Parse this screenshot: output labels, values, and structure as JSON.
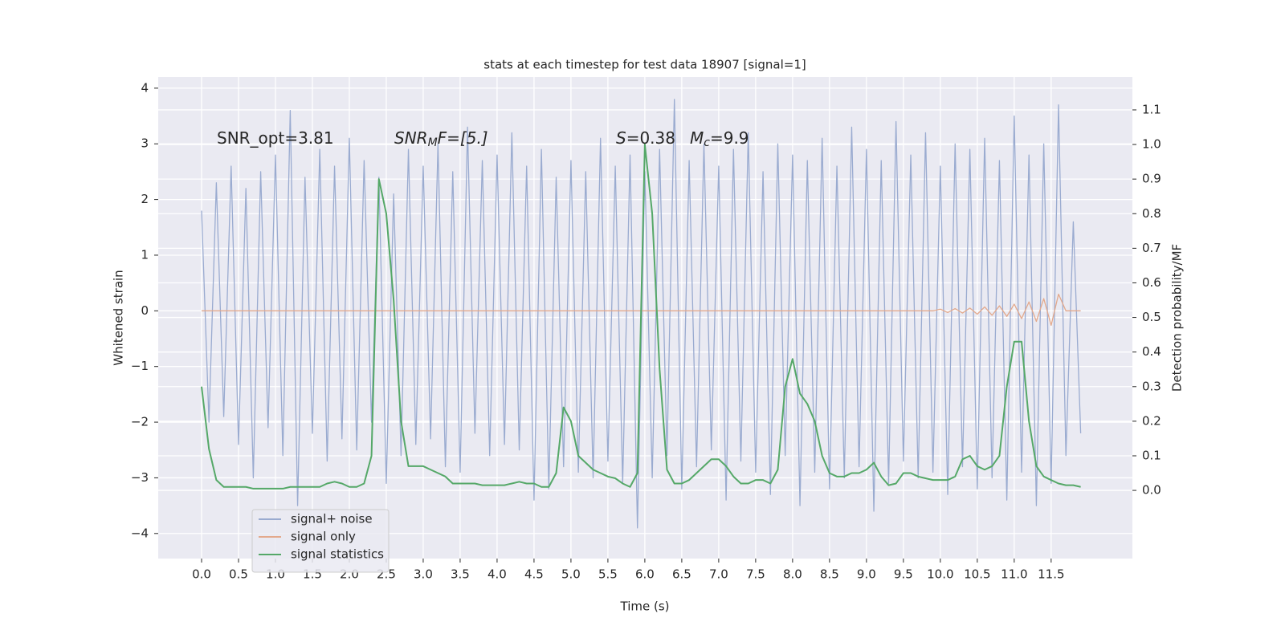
{
  "chart_data": {
    "type": "line",
    "title": "stats at each timestep for test data 18907 [signal=1]",
    "xlabel": "Time (s)",
    "ylabel": "Whitened strain",
    "y2label": "Detection probability/MF",
    "annotations": [
      [
        "SNR_opt=3.81"
      ],
      [
        "SNR",
        "M",
        "F=[5.]"
      ],
      [
        "S",
        "=0.38"
      ],
      [
        "M",
        "c",
        "=9.9"
      ]
    ],
    "x": [
      0,
      0.1,
      0.2,
      0.3,
      0.4,
      0.5,
      0.6,
      0.7,
      0.8,
      0.9,
      1,
      1.1,
      1.2,
      1.3,
      1.4,
      1.5,
      1.6,
      1.7,
      1.8,
      1.9,
      2,
      2.1,
      2.2,
      2.3,
      2.4,
      2.5,
      2.6,
      2.7,
      2.8,
      2.9,
      3,
      3.1,
      3.2,
      3.3,
      3.4,
      3.5,
      3.6,
      3.7,
      3.8,
      3.9,
      4,
      4.1,
      4.2,
      4.3,
      4.4,
      4.5,
      4.6,
      4.7,
      4.8,
      4.9,
      5,
      5.1,
      5.2,
      5.3,
      5.4,
      5.5,
      5.6,
      5.7,
      5.8,
      5.9,
      6,
      6.1,
      6.2,
      6.3,
      6.4,
      6.5,
      6.6,
      6.7,
      6.8,
      6.9,
      7,
      7.1,
      7.2,
      7.3,
      7.4,
      7.5,
      7.6,
      7.7,
      7.8,
      7.9,
      8,
      8.1,
      8.2,
      8.3,
      8.4,
      8.5,
      8.6,
      8.7,
      8.8,
      8.9,
      9,
      9.1,
      9.2,
      9.3,
      9.4,
      9.5,
      9.6,
      9.7,
      9.8,
      9.9,
      10,
      10.1,
      10.2,
      10.3,
      10.4,
      10.5,
      10.6,
      10.7,
      10.8,
      10.9,
      11,
      11.1,
      11.2,
      11.3,
      11.4,
      11.5,
      11.6,
      11.7,
      11.8,
      11.9
    ],
    "series": [
      {
        "name": "signal+ noise",
        "color": "#9aabd0",
        "values": [
          1.8,
          -2.0,
          2.3,
          -1.9,
          2.6,
          -2.4,
          2.2,
          -3.0,
          2.5,
          -2.1,
          2.8,
          -2.6,
          3.6,
          -3.5,
          2.4,
          -2.2,
          2.9,
          -2.7,
          2.6,
          -2.3,
          3.1,
          -2.5,
          2.7,
          -2.0,
          2.4,
          -3.1,
          2.1,
          -2.6,
          2.9,
          -2.4,
          2.6,
          -2.3,
          3.0,
          -2.8,
          2.5,
          -2.9,
          3.3,
          -2.2,
          2.7,
          -2.6,
          2.8,
          -2.4,
          3.2,
          -2.5,
          2.6,
          -3.4,
          2.9,
          -3.2,
          2.4,
          -2.8,
          2.7,
          -2.9,
          2.5,
          -3.0,
          3.1,
          -2.7,
          2.6,
          -3.1,
          2.8,
          -3.9,
          2.5,
          -3.0,
          2.9,
          -2.6,
          3.8,
          -3.2,
          2.7,
          -2.8,
          3.0,
          -2.5,
          2.6,
          -3.4,
          2.9,
          -2.7,
          3.2,
          -2.9,
          2.5,
          -3.3,
          3.0,
          -2.6,
          2.8,
          -3.5,
          2.7,
          -2.9,
          3.1,
          -3.2,
          2.6,
          -3.0,
          3.3,
          -2.8,
          2.9,
          -3.6,
          2.7,
          -3.1,
          3.4,
          -2.7,
          2.8,
          -3.0,
          3.2,
          -2.9,
          2.6,
          -3.3,
          3.0,
          -2.8,
          2.9,
          -3.2,
          3.1,
          -3.0,
          2.7,
          -3.4,
          3.5,
          -2.9,
          2.8,
          -3.5,
          3.0,
          -3.1,
          3.7,
          -2.6,
          1.6,
          -2.2
        ]
      },
      {
        "name": "signal only",
        "color": "#e3a98c",
        "values": [
          0,
          0,
          0,
          0,
          0,
          0,
          0,
          0,
          0,
          0,
          0,
          0,
          0,
          0,
          0,
          0,
          0,
          0,
          0,
          0,
          0,
          0,
          0,
          0,
          0,
          0,
          0,
          0,
          0,
          0,
          0,
          0,
          0,
          0,
          0,
          0,
          0,
          0,
          0,
          0,
          0,
          0,
          0,
          0,
          0,
          0,
          0,
          0,
          0,
          0,
          0,
          0,
          0,
          0,
          0,
          0,
          0,
          0,
          0,
          0,
          0,
          0,
          0,
          0,
          0,
          0,
          0,
          0,
          0,
          0,
          0,
          0,
          0,
          0,
          0,
          0,
          0,
          0,
          0,
          0,
          0,
          0,
          0,
          0,
          0,
          0,
          0,
          0,
          0,
          0,
          0,
          0,
          0,
          0,
          0,
          0,
          0,
          0,
          0,
          0,
          0.03,
          -0.03,
          0.04,
          -0.04,
          0.05,
          -0.06,
          0.07,
          -0.08,
          0.09,
          -0.1,
          0.12,
          -0.14,
          0.16,
          -0.19,
          0.22,
          -0.26,
          0.3,
          0,
          0,
          0
        ]
      },
      {
        "name": "signal statistics",
        "color": "#55a868",
        "axis": "y2",
        "values": [
          0.3,
          0.12,
          0.03,
          0.01,
          0.01,
          0.01,
          0.01,
          0.005,
          0.005,
          0.005,
          0.005,
          0.005,
          0.01,
          0.01,
          0.01,
          0.01,
          0.01,
          0.02,
          0.025,
          0.02,
          0.01,
          0.01,
          0.02,
          0.1,
          0.9,
          0.8,
          0.55,
          0.2,
          0.07,
          0.07,
          0.07,
          0.06,
          0.05,
          0.04,
          0.02,
          0.02,
          0.02,
          0.02,
          0.015,
          0.015,
          0.015,
          0.015,
          0.02,
          0.025,
          0.02,
          0.02,
          0.01,
          0.01,
          0.05,
          0.24,
          0.2,
          0.1,
          0.08,
          0.06,
          0.05,
          0.04,
          0.035,
          0.02,
          0.01,
          0.05,
          1.0,
          0.8,
          0.35,
          0.06,
          0.02,
          0.02,
          0.03,
          0.05,
          0.07,
          0.09,
          0.09,
          0.07,
          0.04,
          0.02,
          0.02,
          0.03,
          0.03,
          0.02,
          0.06,
          0.3,
          0.38,
          0.28,
          0.25,
          0.2,
          0.1,
          0.05,
          0.04,
          0.04,
          0.05,
          0.05,
          0.06,
          0.08,
          0.04,
          0.015,
          0.02,
          0.05,
          0.05,
          0.04,
          0.035,
          0.03,
          0.03,
          0.03,
          0.04,
          0.09,
          0.1,
          0.07,
          0.06,
          0.07,
          0.1,
          0.3,
          0.43,
          0.43,
          0.2,
          0.07,
          0.04,
          0.03,
          0.02,
          0.015,
          0.015,
          0.01
        ]
      }
    ],
    "xlim": [
      -0.587,
      12.6
    ],
    "ylim": [
      -4.45,
      4.2
    ],
    "y2lim": [
      -0.197,
      1.195
    ],
    "xticks": [
      {
        "value": 0,
        "label": "0.0"
      },
      {
        "value": 0.5,
        "label": "0.5"
      },
      {
        "value": 1,
        "label": "1.0"
      },
      {
        "value": 1.5,
        "label": "1.5"
      },
      {
        "value": 2,
        "label": "2.0"
      },
      {
        "value": 2.5,
        "label": "2.5"
      },
      {
        "value": 3,
        "label": "3.0"
      },
      {
        "value": 3.5,
        "label": "3.5"
      },
      {
        "value": 4,
        "label": "4.0"
      },
      {
        "value": 4.5,
        "label": "4.5"
      },
      {
        "value": 5,
        "label": "5.0"
      },
      {
        "value": 5.5,
        "label": "5.5"
      },
      {
        "value": 6,
        "label": "6.0"
      },
      {
        "value": 6.5,
        "label": "6.5"
      },
      {
        "value": 7,
        "label": "7.0"
      },
      {
        "value": 7.5,
        "label": "7.5"
      },
      {
        "value": 8,
        "label": "8.0"
      },
      {
        "value": 8.5,
        "label": "8.5"
      },
      {
        "value": 9,
        "label": "9.0"
      },
      {
        "value": 9.5,
        "label": "9.5"
      },
      {
        "value": 10,
        "label": "10.0"
      },
      {
        "value": 10.5,
        "label": "10.5"
      },
      {
        "value": 11,
        "label": "11.0"
      },
      {
        "value": 11.5,
        "label": "11.5"
      }
    ],
    "yticks": [
      {
        "value": -4,
        "label": "−4"
      },
      {
        "value": -3,
        "label": "−3"
      },
      {
        "value": -2,
        "label": "−2"
      },
      {
        "value": -1,
        "label": "−1"
      },
      0,
      1,
      2,
      3,
      4
    ],
    "y2ticks": [
      {
        "value": 0,
        "label": "0.0"
      },
      {
        "value": 0.1,
        "label": "0.1"
      },
      {
        "value": 0.2,
        "label": "0.2"
      },
      {
        "value": 0.3,
        "label": "0.3"
      },
      {
        "value": 0.4,
        "label": "0.4"
      },
      {
        "value": 0.5,
        "label": "0.5"
      },
      {
        "value": 0.6,
        "label": "0.6"
      },
      {
        "value": 0.7,
        "label": "0.7"
      },
      {
        "value": 0.8,
        "label": "0.8"
      },
      {
        "value": 0.9,
        "label": "0.9"
      },
      {
        "value": 1,
        "label": "1.0"
      },
      {
        "value": 1.1,
        "label": "1.1"
      }
    ],
    "grid": true,
    "legend": "lower left"
  }
}
